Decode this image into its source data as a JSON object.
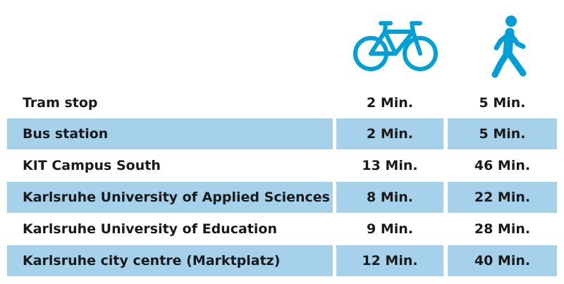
{
  "header": {
    "columns": [
      {
        "icon": "bicycle-icon",
        "color": "#00a0d6"
      },
      {
        "icon": "pedestrian-icon",
        "color": "#00a0d6"
      }
    ]
  },
  "rows": [
    {
      "destination": "Tram stop",
      "bike": "2 Min.",
      "walk": "5 Min.",
      "shaded": false
    },
    {
      "destination": "Bus station",
      "bike": "2 Min.",
      "walk": "5 Min.",
      "shaded": true
    },
    {
      "destination": "KIT Campus South",
      "bike": "13 Min.",
      "walk": "46 Min.",
      "shaded": false
    },
    {
      "destination": "Karlsruhe University of Applied Sciences",
      "bike": "8 Min.",
      "walk": "22 Min.",
      "shaded": true
    },
    {
      "destination": "Karlsruhe University of Education",
      "bike": "9 Min.",
      "walk": "28 Min.",
      "shaded": false
    },
    {
      "destination": "Karlsruhe city centre (Marktplatz)",
      "bike": "12 Min.",
      "walk": "40 Min.",
      "shaded": true
    }
  ],
  "colors": {
    "accent": "#00a0d6",
    "row_shade": "#a6d1ea",
    "text": "#1a1a1a"
  }
}
